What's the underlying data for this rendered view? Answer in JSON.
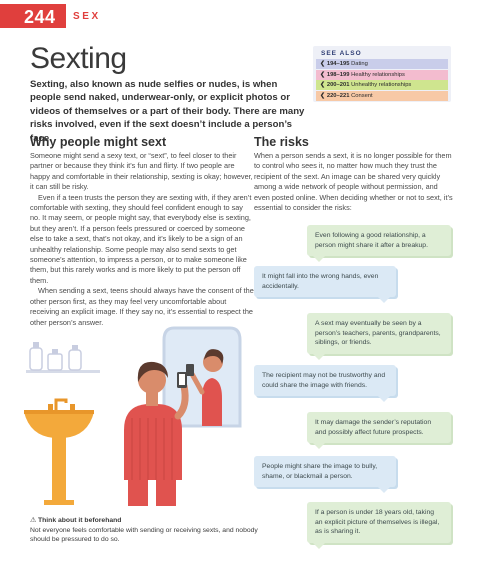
{
  "header": {
    "page_number": "244",
    "section": "SEX"
  },
  "title": "Sexting",
  "intro": "Sexting, also known as nude selfies or nudes, is when people send naked, underwear-only, or explicit photos or videos of themselves or a part of their body. There are many risks involved, even if the sext doesn’t include a person’s face.",
  "see_also": {
    "title": "SEE ALSO",
    "items": [
      {
        "pages": "194–195",
        "label": "Dating",
        "color": "#c9cdea"
      },
      {
        "pages": "198–199",
        "label": "Healthy relationships",
        "color": "#f3bccf"
      },
      {
        "pages": "200–201",
        "label": "Unhealthy relationships",
        "color": "#cfe58f"
      },
      {
        "pages": "220–221",
        "label": "Consent",
        "color": "#f7c9a6"
      }
    ]
  },
  "why": {
    "heading": "Why people might sext",
    "paragraphs": [
      "Someone might send a sexy text, or “sext”, to feel closer to their partner or because they think it’s fun and flirty. If two people are happy and comfortable in their relationship, sexting is okay; however, it can still be risky.",
      "Even if a teen trusts the person they are sexting with, if they aren’t comfortable with sexting, they should feel confident enough to say no. It may seem, or people might say, that everybody else is sexting, but they aren’t. If a person feels pressured or coerced by someone else to take a sext, that’s not okay, and it’s likely to be a sign of an unhealthy relationship. Some people may also send sexts to get someone’s attention, to impress a person, or to make someone like them, but this rarely works and is more likely to put the person off them.",
      "When sending a sext, teens should always have the consent of the other person first, as they may feel very uncomfortable about receiving an explicit image. If they say no, it’s essential to respect the other person’s answer."
    ]
  },
  "risks": {
    "heading": "The risks",
    "intro": "When a person sends a sext, it is no longer possible for them to control who sees it, no matter how much they trust the recipient of the sext. An image can be shared very quickly among a wide network of people without permission, and even posted online. When deciding whether or not to sext, it’s essential to consider the risks:",
    "bubbles": [
      "Even following a good relationship, a person might share it after a breakup.",
      "It might fall into the wrong hands, even accidentally.",
      "A sext may eventually be seen by a person’s teachers, parents, grandparents, siblings, or friends.",
      "The recipient may not be trustworthy and could share the image with friends.",
      "It may damage the sender’s reputation and possibly affect future prospects.",
      "People might share the image to bully, shame, or blackmail a person.",
      "If a person is under 18 years old, taking an explicit picture of themselves is illegal, as is sharing it."
    ]
  },
  "note": {
    "icon": "warning-triangle-icon",
    "heading": "Think about it beforehand",
    "text": "Not everyone feels comfortable with sending or receiving sexts, and nobody should be pressured to do so."
  },
  "colors": {
    "accent": "#e03f3d",
    "bubble_green": "#dfeed6",
    "bubble_blue": "#dbe9f5"
  }
}
